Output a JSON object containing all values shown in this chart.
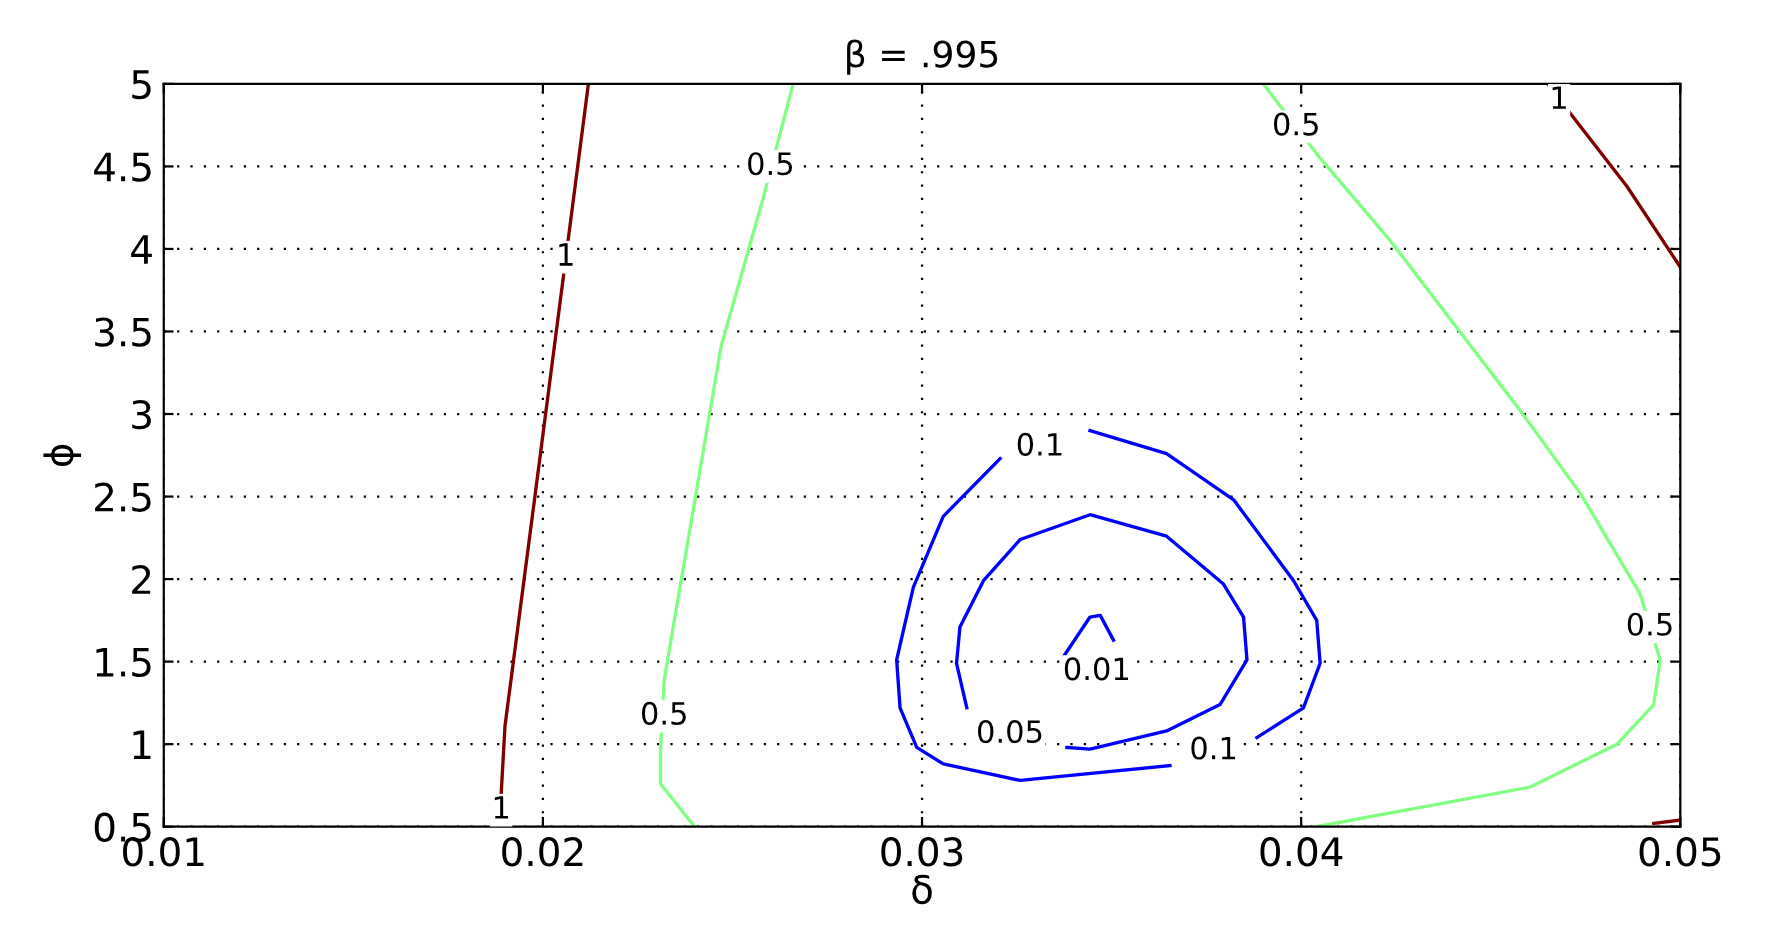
{
  "chart_data": {
    "type": "line",
    "title": "β = .995",
    "xlabel": "δ",
    "ylabel": "ϕ",
    "xlim": [
      0.01,
      0.05
    ],
    "xticks": [
      0.01,
      0.02,
      0.03,
      0.04,
      0.05
    ],
    "ylim": [
      0.5,
      5
    ],
    "yticks": [
      0.5,
      1,
      1.5,
      2,
      2.5,
      3,
      3.5,
      4,
      4.5,
      5
    ],
    "grid": true,
    "legend": false,
    "marker": "none",
    "line_style": "solid",
    "series": [
      {
        "color": "#800000",
        "x": [
          0.0188,
          0.0189,
          0.019,
          0.0198,
          0.0212
        ],
        "values": [
          0.5,
          0.7,
          1.11,
          2.52,
          5.0
        ]
      },
      {
        "color": "#80ff80",
        "x": [
          0.024,
          0.0231,
          0.0231,
          0.0232,
          0.0247,
          0.0258,
          0.0266
        ],
        "values": [
          0.5,
          0.76,
          0.96,
          1.39,
          3.41,
          4.3,
          5.0
        ]
      },
      {
        "color": "#0000ff",
        "x": [
          0.03443,
          0.03645,
          0.03822,
          0.0398,
          0.04041,
          0.0405,
          0.04006,
          0.03883,
          0.03769,
          0.03654,
          0.03259,
          0.03056,
          0.02986,
          0.02942,
          0.02933,
          0.02977,
          0.03056,
          0.03206
        ],
        "values": [
          2.9,
          2.76,
          2.48,
          1.99,
          1.75,
          1.49,
          1.22,
          1.04,
          null,
          0.87,
          0.78,
          0.88,
          0.98,
          1.22,
          1.51,
          1.95,
          2.38,
          2.73
        ]
      },
      {
        "color": "#0000ff",
        "x": [
          0.03382,
          0.03443,
          0.03645,
          0.03786,
          0.03857,
          0.03848,
          0.03795,
          0.03645,
          0.03443,
          0.03259,
          0.03162,
          0.031,
          0.03091,
          0.03118
        ],
        "values": [
          0.98,
          0.97,
          1.08,
          1.24,
          1.51,
          1.77,
          1.97,
          2.26,
          2.39,
          2.24,
          1.99,
          1.71,
          1.49,
          1.22
        ]
      },
      {
        "color": "#0000ff",
        "x": [
          0.03373,
          0.03443,
          0.0347,
          0.03505
        ],
        "values": [
          1.53,
          1.77,
          1.78,
          1.63
        ]
      },
      {
        "color": "#80ff80",
        "x": [
          0.039,
          0.0405,
          0.04235,
          0.04578,
          0.04736,
          0.04894,
          0.04947,
          0.0493,
          0.04833,
          0.04604,
          0.0404
        ],
        "values": [
          5.0,
          4.55,
          4.05,
          3.02,
          2.52,
          1.91,
          1.51,
          1.24,
          1.0,
          0.74,
          0.5
        ]
      },
      {
        "color": "#800000",
        "x": [
          0.0465,
          0.0471,
          0.04859,
          0.05
        ],
        "values": [
          5.0,
          4.82,
          4.38,
          3.89
        ]
      },
      {
        "color": "#800000",
        "x": [
          0.0493,
          0.05
        ],
        "values": [
          0.52,
          0.54
        ]
      }
    ],
    "annotations": [
      {
        "text": "1",
        "x": 0.0206,
        "y": 3.95
      },
      {
        "text": "1",
        "x": 0.0189,
        "y": 0.6
      },
      {
        "text": "0.5",
        "x": 0.026,
        "y": 4.5
      },
      {
        "text": "0.5",
        "x": 0.0232,
        "y": 1.17
      },
      {
        "text": "0.1",
        "x": 0.03311,
        "y": 2.8
      },
      {
        "text": "0.1",
        "x": 0.03769,
        "y": 0.96
      },
      {
        "text": "0.05",
        "x": 0.03232,
        "y": 1.06
      },
      {
        "text": "0.01",
        "x": 0.03461,
        "y": 1.44
      },
      {
        "text": "0.5",
        "x": 0.03987,
        "y": 4.74
      },
      {
        "text": "0.5",
        "x": 0.0492,
        "y": 1.71
      },
      {
        "text": "1",
        "x": 0.0468,
        "y": 4.9
      }
    ]
  }
}
